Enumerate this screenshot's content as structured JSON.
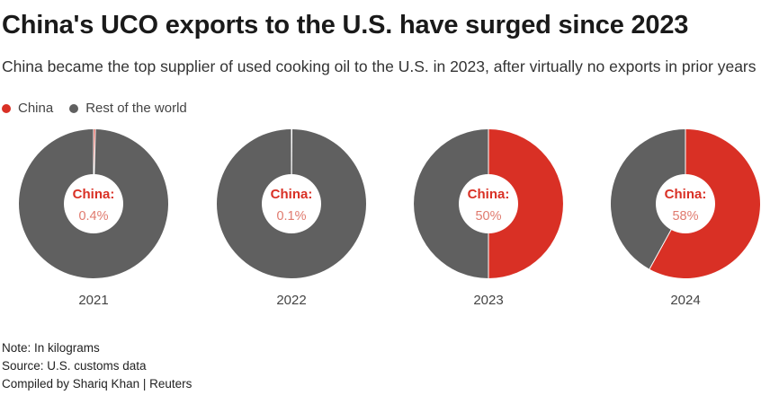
{
  "title": "China's UCO exports to the U.S. have surged since 2023",
  "subtitle": "China became the top supplier of used cooking oil to the U.S. in 2023, after virtually no exports in prior years",
  "legend": [
    {
      "label": "China",
      "color": "#d93025"
    },
    {
      "label": "Rest of the world",
      "color": "#606060"
    }
  ],
  "chart_data": {
    "type": "pie",
    "donut": true,
    "series_names": [
      "China",
      "Rest of the world"
    ],
    "colors": {
      "China": "#d93025",
      "Rest of the world": "#606060"
    },
    "center_label": "China:",
    "charts": [
      {
        "year": "2021",
        "china": 0.4,
        "china_label": "0.4%",
        "rest": 99.6
      },
      {
        "year": "2022",
        "china": 0.1,
        "china_label": "0.1%",
        "rest": 99.9
      },
      {
        "year": "2023",
        "china": 50,
        "china_label": "50%",
        "rest": 50
      },
      {
        "year": "2024",
        "china": 58,
        "china_label": "58%",
        "rest": 42
      }
    ]
  },
  "footer": {
    "note": "Note: In kilograms",
    "source": "Source: U.S. customs data",
    "credit": "Compiled by Shariq Khan | Reuters"
  }
}
